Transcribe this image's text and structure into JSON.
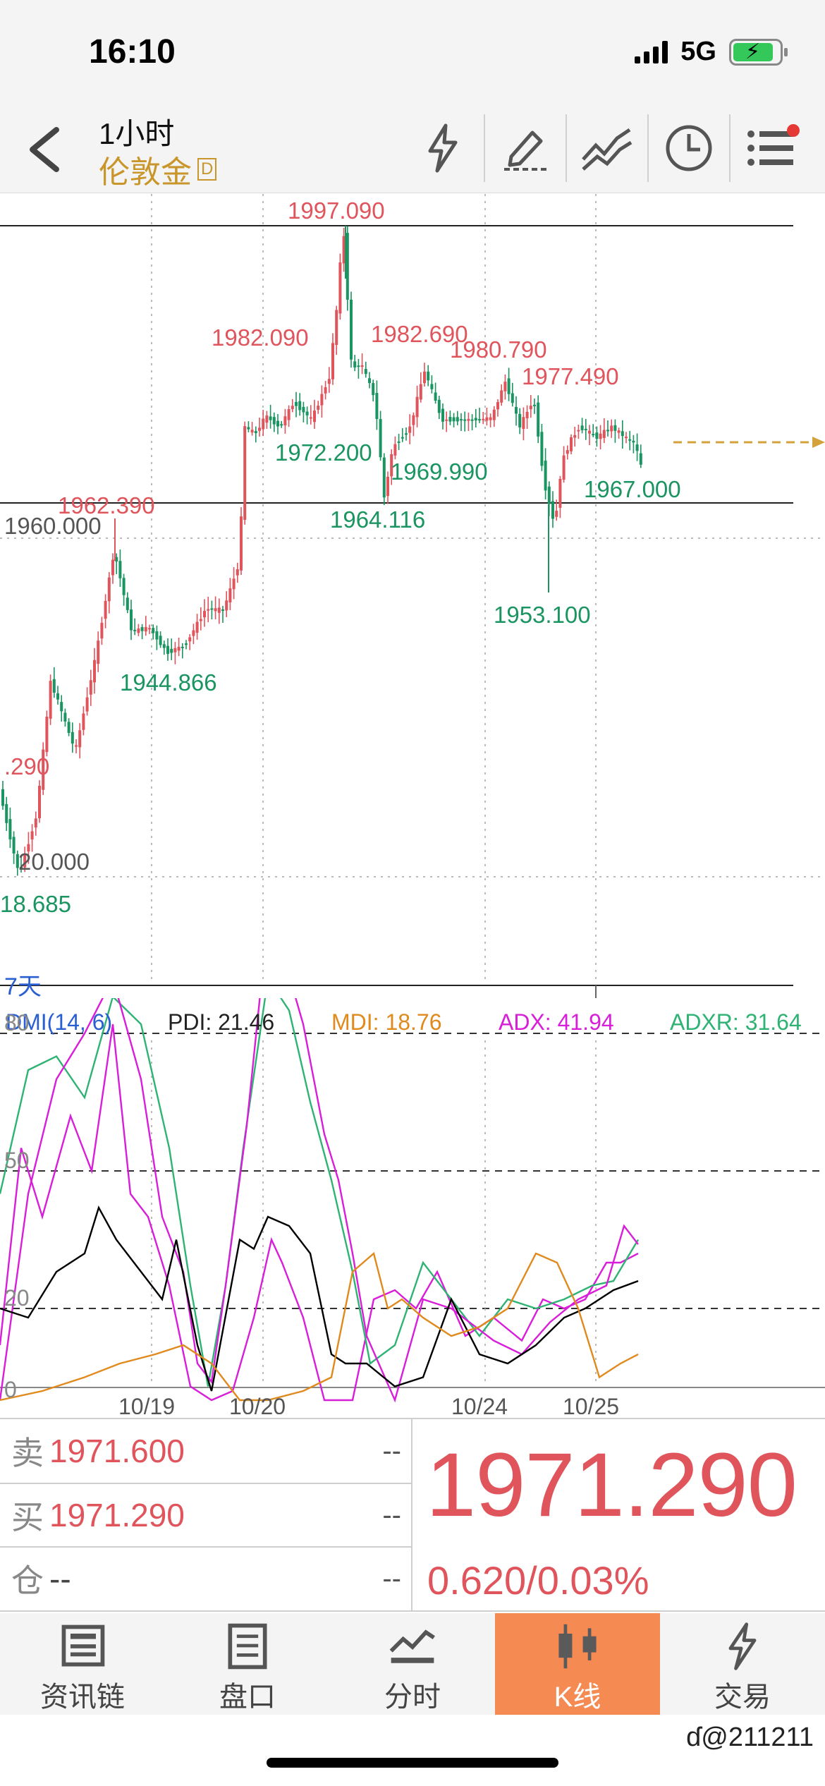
{
  "status": {
    "time": "16:10",
    "network": "5G"
  },
  "header": {
    "interval": "1小时",
    "symbol": "伦敦金",
    "symbol_badge": "D"
  },
  "chart": {
    "price_labels_high": [
      {
        "text": "1997.090"
      },
      {
        "text": "1982.090"
      },
      {
        "text": "1982.690"
      },
      {
        "text": "1980.790"
      },
      {
        "text": "1977.490"
      },
      {
        "text": "1962.390"
      },
      {
        "text": ".290"
      }
    ],
    "price_labels_low": [
      {
        "text": "1972.200"
      },
      {
        "text": "1969.990"
      },
      {
        "text": "1964.116"
      },
      {
        "text": "1967.000"
      },
      {
        "text": "1953.100"
      },
      {
        "text": "1944.866"
      },
      {
        "text": "18.685"
      }
    ],
    "gridline_labels": [
      "1960.000",
      "20.000"
    ],
    "period_label": "7天",
    "dates": [
      "10/19",
      "10/20",
      "10/24",
      "10/25"
    ]
  },
  "dmi": {
    "title": "DMI(14, 6)",
    "pdi": "PDI: 21.46",
    "mdi": "MDI: 18.76",
    "adx": "ADX: 41.94",
    "adxr": "ADXR: 31.64",
    "axis": [
      "80",
      "50",
      "20",
      "0"
    ],
    "colors": {
      "pdi": "#000000",
      "mdi": "#e08a1e",
      "adx": "#d81ed8",
      "adxr": "#2fb374"
    }
  },
  "quote": {
    "sell_label": "卖",
    "sell_price": "1971.600",
    "buy_label": "买",
    "buy_price": "1971.290",
    "position_label": "仓",
    "position_value": "--",
    "dash": "--",
    "last_price": "1971.290",
    "change": "0.620/0.03%"
  },
  "tabs": [
    {
      "label": "资讯链",
      "icon": "news-icon"
    },
    {
      "label": "盘口",
      "icon": "orderbook-icon"
    },
    {
      "label": "分时",
      "icon": "timeshare-icon"
    },
    {
      "label": "K线",
      "icon": "kline-icon",
      "active": true
    },
    {
      "label": "交易",
      "icon": "trade-icon"
    }
  ],
  "watermark": "@211211",
  "colors": {
    "up": "#e0545c",
    "down": "#1a9460",
    "accent": "#c9962b",
    "active_tab": "#f58a53"
  }
}
